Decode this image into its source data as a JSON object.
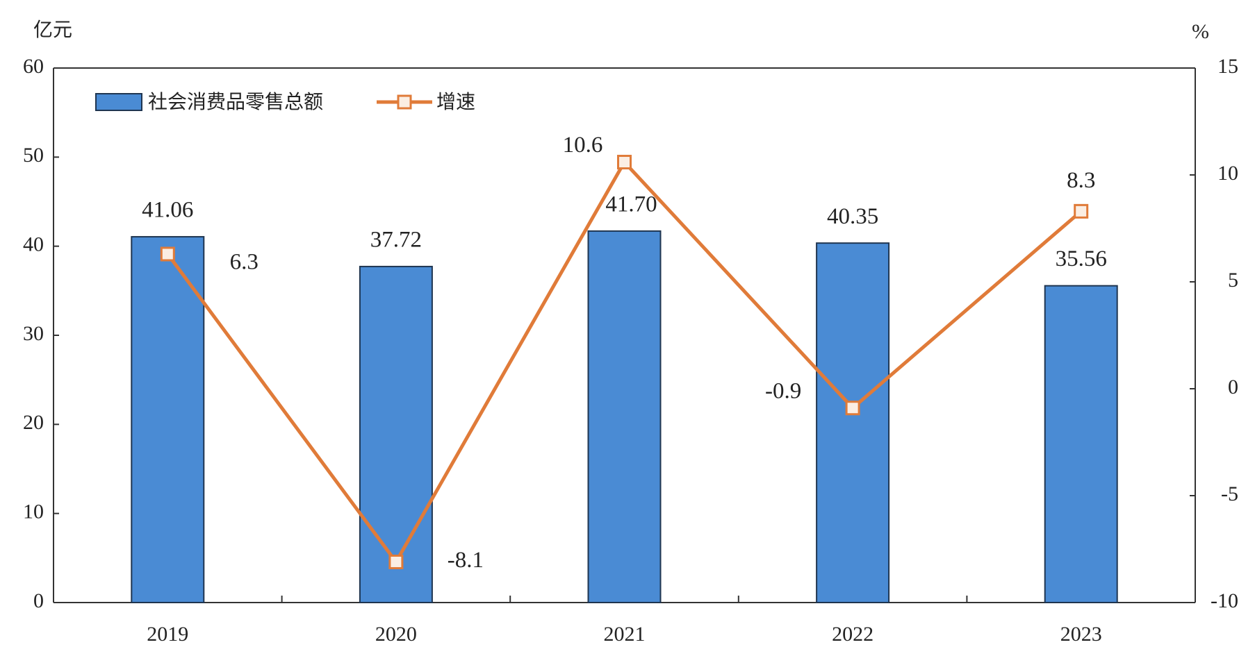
{
  "chart_data": {
    "type": "bar",
    "categories": [
      "2019",
      "2020",
      "2021",
      "2022",
      "2023"
    ],
    "y_label": "亿元",
    "y2_label": "%",
    "series": [
      {
        "name": "社会消费品零售总额",
        "color": "#4a8bd4",
        "values": [
          41.06,
          37.72,
          41.7,
          40.35,
          35.56
        ],
        "value_labels": [
          "41.06",
          "37.72",
          "41.70",
          "40.35",
          "35.56"
        ]
      },
      {
        "name": "增速",
        "type": "line",
        "axis": "y2",
        "color": "#e07b39",
        "values": [
          6.3,
          -8.1,
          10.6,
          -0.9,
          8.3
        ]
      }
    ],
    "ylim": [
      0,
      60
    ],
    "yticks": [
      0,
      10,
      20,
      30,
      40,
      50,
      60
    ],
    "y2lim": [
      -10,
      15
    ],
    "y2ticks": [
      -10,
      -5,
      0,
      5,
      10,
      15
    ]
  }
}
